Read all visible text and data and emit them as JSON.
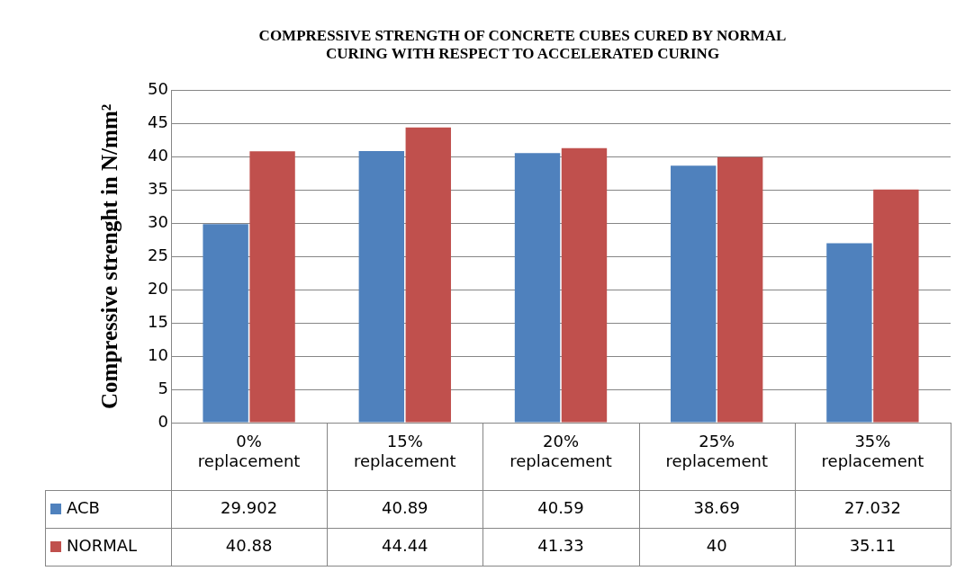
{
  "chart_data": {
    "type": "bar",
    "title": "COMPRESSIVE STRENGTH OF CONCRETE CUBES CURED BY NORMAL CURING WITH RESPECT TO ACCELERATED CURING",
    "ylabel": "Compressive strenght in N/mm²",
    "categories": [
      "0% replacement",
      "15% replacement",
      "20% replacement",
      "25% replacement",
      "35% replacement"
    ],
    "series": [
      {
        "name": "ACB",
        "color": "#4f81bd",
        "values": [
          29.902,
          40.89,
          40.59,
          38.69,
          27.032
        ]
      },
      {
        "name": "NORMAL",
        "color": "#c0504d",
        "values": [
          40.88,
          44.44,
          41.33,
          40,
          35.11
        ]
      }
    ],
    "ylim": [
      0,
      50
    ],
    "yticks": [
      0,
      5,
      10,
      15,
      20,
      25,
      30,
      35,
      40,
      45,
      50
    ],
    "grid": "y",
    "legend": "bottom",
    "data_labels": true
  }
}
